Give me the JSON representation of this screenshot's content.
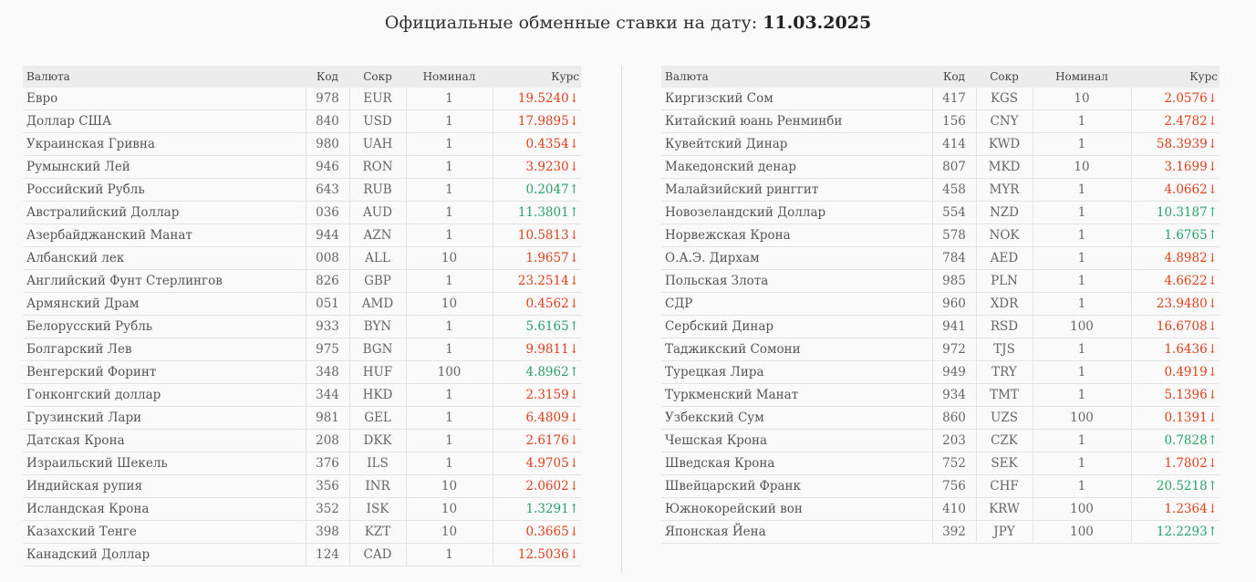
{
  "header": {
    "title_prefix": "Официальные обменные ставки на дату: ",
    "date": "11.03.2025"
  },
  "columns": {
    "name": "Валюта",
    "code": "Код",
    "abbr": "Сокр",
    "nominal": "Номинал",
    "rate": "Курс"
  },
  "arrows": {
    "up": "↑",
    "down": "↓"
  },
  "colors": {
    "down": "#e0401b",
    "up": "#2aa266"
  },
  "left_table": [
    {
      "name": "Евро",
      "code": "978",
      "abbr": "EUR",
      "nominal": "1",
      "rate": "19.5240",
      "trend": "down"
    },
    {
      "name": "Доллар США",
      "code": "840",
      "abbr": "USD",
      "nominal": "1",
      "rate": "17.9895",
      "trend": "down"
    },
    {
      "name": "Украинская Гривна",
      "code": "980",
      "abbr": "UAH",
      "nominal": "1",
      "rate": "0.4354",
      "trend": "down"
    },
    {
      "name": "Румынский Лей",
      "code": "946",
      "abbr": "RON",
      "nominal": "1",
      "rate": "3.9230",
      "trend": "down"
    },
    {
      "name": "Российский Рубль",
      "code": "643",
      "abbr": "RUB",
      "nominal": "1",
      "rate": "0.2047",
      "trend": "up"
    },
    {
      "name": "Австралийский Доллар",
      "code": "036",
      "abbr": "AUD",
      "nominal": "1",
      "rate": "11.3801",
      "trend": "up"
    },
    {
      "name": "Азербайджанский Манат",
      "code": "944",
      "abbr": "AZN",
      "nominal": "1",
      "rate": "10.5813",
      "trend": "down"
    },
    {
      "name": "Албанский лек",
      "code": "008",
      "abbr": "ALL",
      "nominal": "10",
      "rate": "1.9657",
      "trend": "down"
    },
    {
      "name": "Английский Фунт Стерлингов",
      "code": "826",
      "abbr": "GBP",
      "nominal": "1",
      "rate": "23.2514",
      "trend": "down"
    },
    {
      "name": "Армянский Драм",
      "code": "051",
      "abbr": "AMD",
      "nominal": "10",
      "rate": "0.4562",
      "trend": "down"
    },
    {
      "name": "Белорусский Рубль",
      "code": "933",
      "abbr": "BYN",
      "nominal": "1",
      "rate": "5.6165",
      "trend": "up"
    },
    {
      "name": "Болгарский Лев",
      "code": "975",
      "abbr": "BGN",
      "nominal": "1",
      "rate": "9.9811",
      "trend": "down"
    },
    {
      "name": "Венгерский Форинт",
      "code": "348",
      "abbr": "HUF",
      "nominal": "100",
      "rate": "4.8962",
      "trend": "up"
    },
    {
      "name": "Гонконгский доллар",
      "code": "344",
      "abbr": "HKD",
      "nominal": "1",
      "rate": "2.3159",
      "trend": "down"
    },
    {
      "name": "Грузинский Лари",
      "code": "981",
      "abbr": "GEL",
      "nominal": "1",
      "rate": "6.4809",
      "trend": "down"
    },
    {
      "name": "Датская Крона",
      "code": "208",
      "abbr": "DKK",
      "nominal": "1",
      "rate": "2.6176",
      "trend": "down"
    },
    {
      "name": "Израильский Шекель",
      "code": "376",
      "abbr": "ILS",
      "nominal": "1",
      "rate": "4.9705",
      "trend": "down"
    },
    {
      "name": "Индийская рупия",
      "code": "356",
      "abbr": "INR",
      "nominal": "10",
      "rate": "2.0602",
      "trend": "down"
    },
    {
      "name": "Исландская Крона",
      "code": "352",
      "abbr": "ISK",
      "nominal": "10",
      "rate": "1.3291",
      "trend": "up"
    },
    {
      "name": "Казахский Тенге",
      "code": "398",
      "abbr": "KZT",
      "nominal": "10",
      "rate": "0.3665",
      "trend": "down"
    },
    {
      "name": "Канадский Доллар",
      "code": "124",
      "abbr": "CAD",
      "nominal": "1",
      "rate": "12.5036",
      "trend": "down"
    }
  ],
  "right_table": [
    {
      "name": "Киргизский Сом",
      "code": "417",
      "abbr": "KGS",
      "nominal": "10",
      "rate": "2.0576",
      "trend": "down"
    },
    {
      "name": "Китайский юань Ренминби",
      "code": "156",
      "abbr": "CNY",
      "nominal": "1",
      "rate": "2.4782",
      "trend": "down"
    },
    {
      "name": "Кувейтский Динар",
      "code": "414",
      "abbr": "KWD",
      "nominal": "1",
      "rate": "58.3939",
      "trend": "down"
    },
    {
      "name": "Македонский денар",
      "code": "807",
      "abbr": "MKD",
      "nominal": "10",
      "rate": "3.1699",
      "trend": "down"
    },
    {
      "name": "Малайзийский ринггит",
      "code": "458",
      "abbr": "MYR",
      "nominal": "1",
      "rate": "4.0662",
      "trend": "down"
    },
    {
      "name": "Новозеландский Доллар",
      "code": "554",
      "abbr": "NZD",
      "nominal": "1",
      "rate": "10.3187",
      "trend": "up"
    },
    {
      "name": "Норвежская Крона",
      "code": "578",
      "abbr": "NOK",
      "nominal": "1",
      "rate": "1.6765",
      "trend": "up"
    },
    {
      "name": "О.А.Э. Дирхам",
      "code": "784",
      "abbr": "AED",
      "nominal": "1",
      "rate": "4.8982",
      "trend": "down"
    },
    {
      "name": "Польская Злота",
      "code": "985",
      "abbr": "PLN",
      "nominal": "1",
      "rate": "4.6622",
      "trend": "down"
    },
    {
      "name": "СДР",
      "code": "960",
      "abbr": "XDR",
      "nominal": "1",
      "rate": "23.9480",
      "trend": "down"
    },
    {
      "name": "Сербский Динар",
      "code": "941",
      "abbr": "RSD",
      "nominal": "100",
      "rate": "16.6708",
      "trend": "down"
    },
    {
      "name": "Таджикский Сомони",
      "code": "972",
      "abbr": "TJS",
      "nominal": "1",
      "rate": "1.6436",
      "trend": "down"
    },
    {
      "name": "Турецкая Лира",
      "code": "949",
      "abbr": "TRY",
      "nominal": "1",
      "rate": "0.4919",
      "trend": "down"
    },
    {
      "name": "Туркменский Манат",
      "code": "934",
      "abbr": "TMT",
      "nominal": "1",
      "rate": "5.1396",
      "trend": "down"
    },
    {
      "name": "Узбекский Сум",
      "code": "860",
      "abbr": "UZS",
      "nominal": "100",
      "rate": "0.1391",
      "trend": "down"
    },
    {
      "name": "Чешская Крона",
      "code": "203",
      "abbr": "CZK",
      "nominal": "1",
      "rate": "0.7828",
      "trend": "up"
    },
    {
      "name": "Шведская Крона",
      "code": "752",
      "abbr": "SEK",
      "nominal": "1",
      "rate": "1.7802",
      "trend": "down"
    },
    {
      "name": "Швейцарский Франк",
      "code": "756",
      "abbr": "CHF",
      "nominal": "1",
      "rate": "20.5218",
      "trend": "up"
    },
    {
      "name": "Южнокорейский вон",
      "code": "410",
      "abbr": "KRW",
      "nominal": "100",
      "rate": "1.2364",
      "trend": "down"
    },
    {
      "name": "Японская Йена",
      "code": "392",
      "abbr": "JPY",
      "nominal": "100",
      "rate": "12.2293",
      "trend": "up"
    }
  ]
}
